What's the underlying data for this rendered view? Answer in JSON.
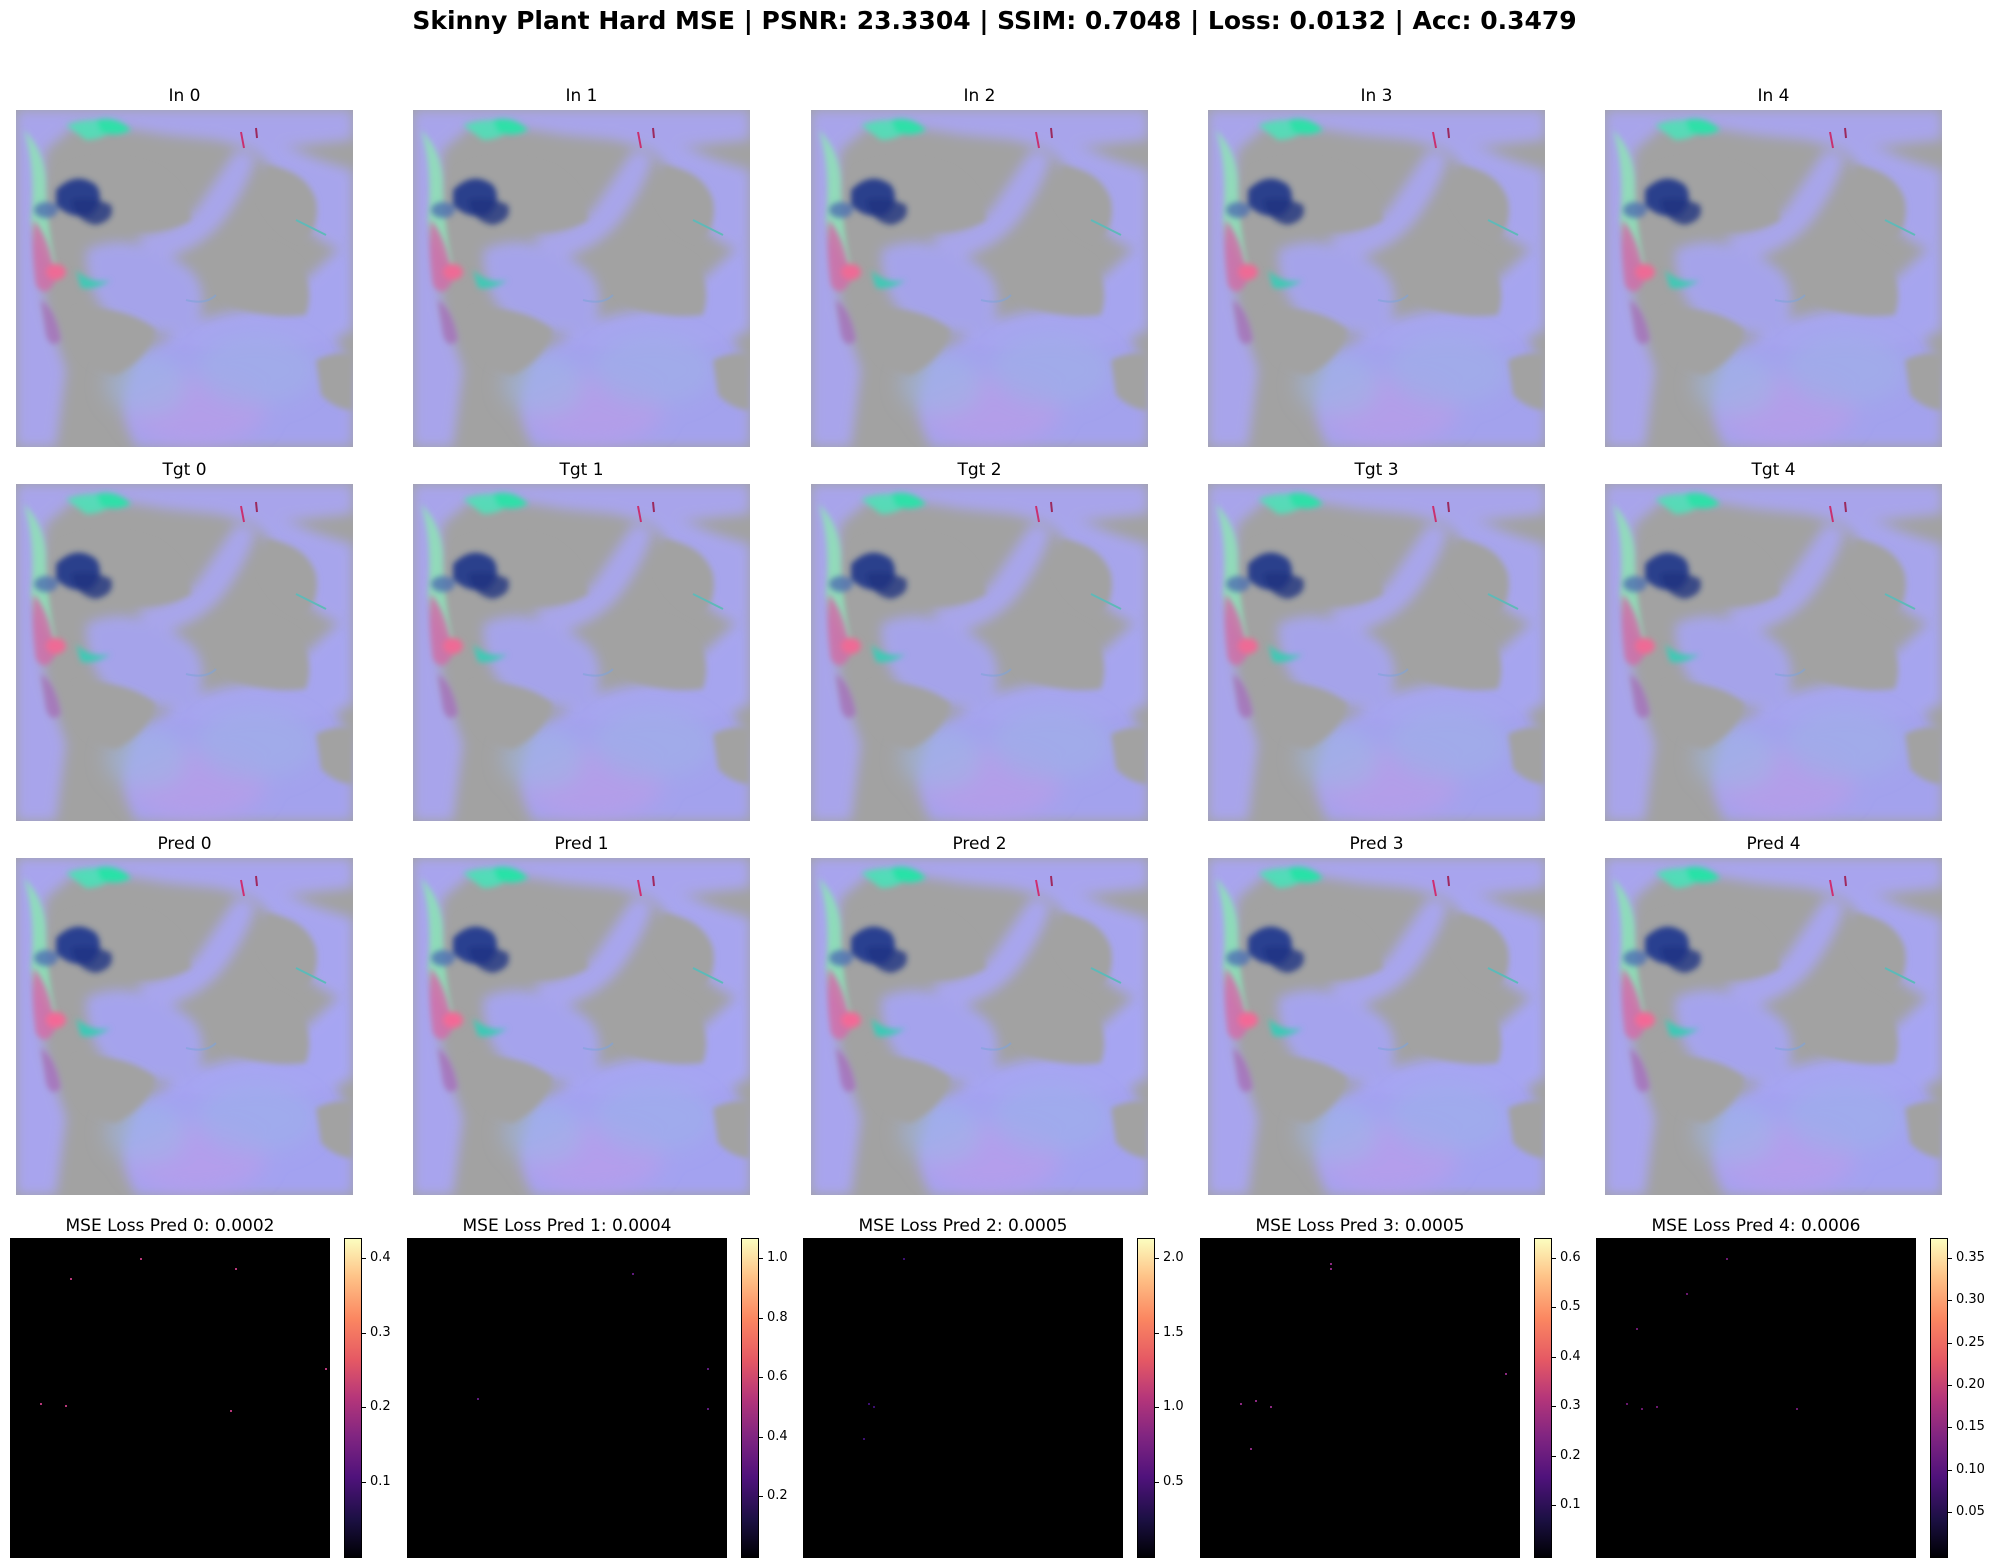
{
  "title": "Skinny Plant Hard MSE | PSNR: 23.3304 | SSIM: 0.7048 | Loss: 0.0132 | Acc: 0.3479",
  "rows": [
    {
      "name": "input",
      "titles": [
        "In 0",
        "In 1",
        "In 2",
        "In 3",
        "In 4"
      ]
    },
    {
      "name": "target",
      "titles": [
        "Tgt 0",
        "Tgt 1",
        "Tgt 2",
        "Tgt 3",
        "Tgt 4"
      ]
    },
    {
      "name": "prediction",
      "titles": [
        "Pred 0",
        "Pred 1",
        "Pred 2",
        "Pred 3",
        "Pred 4"
      ]
    }
  ],
  "loss_panels": [
    {
      "title": "MSE Loss Pred 0: 0.0002",
      "colorbar_ticks": [
        "0.4",
        "0.3",
        "0.2",
        "0.1"
      ]
    },
    {
      "title": "MSE Loss Pred 1: 0.0004",
      "colorbar_ticks": [
        "1.0",
        "0.8",
        "0.6",
        "0.4",
        "0.2"
      ]
    },
    {
      "title": "MSE Loss Pred 2: 0.0005",
      "colorbar_ticks": [
        "2.0",
        "1.5",
        "1.0",
        "0.5"
      ]
    },
    {
      "title": "MSE Loss Pred 3: 0.0005",
      "colorbar_ticks": [
        "0.6",
        "0.5",
        "0.4",
        "0.3",
        "0.2",
        "0.1"
      ]
    },
    {
      "title": "MSE Loss Pred 4: 0.0006",
      "colorbar_ticks": [
        "0.35",
        "0.30",
        "0.25",
        "0.20",
        "0.15",
        "0.10",
        "0.05"
      ]
    }
  ],
  "colormap": "magma",
  "colors": {
    "background_gray": "#a2a2a2",
    "flow_lavender": "#a9a5f0",
    "flow_teal": "#3fe0b0",
    "flow_navy": "#2a3a8c",
    "flow_pink": "#e06a9a"
  }
}
